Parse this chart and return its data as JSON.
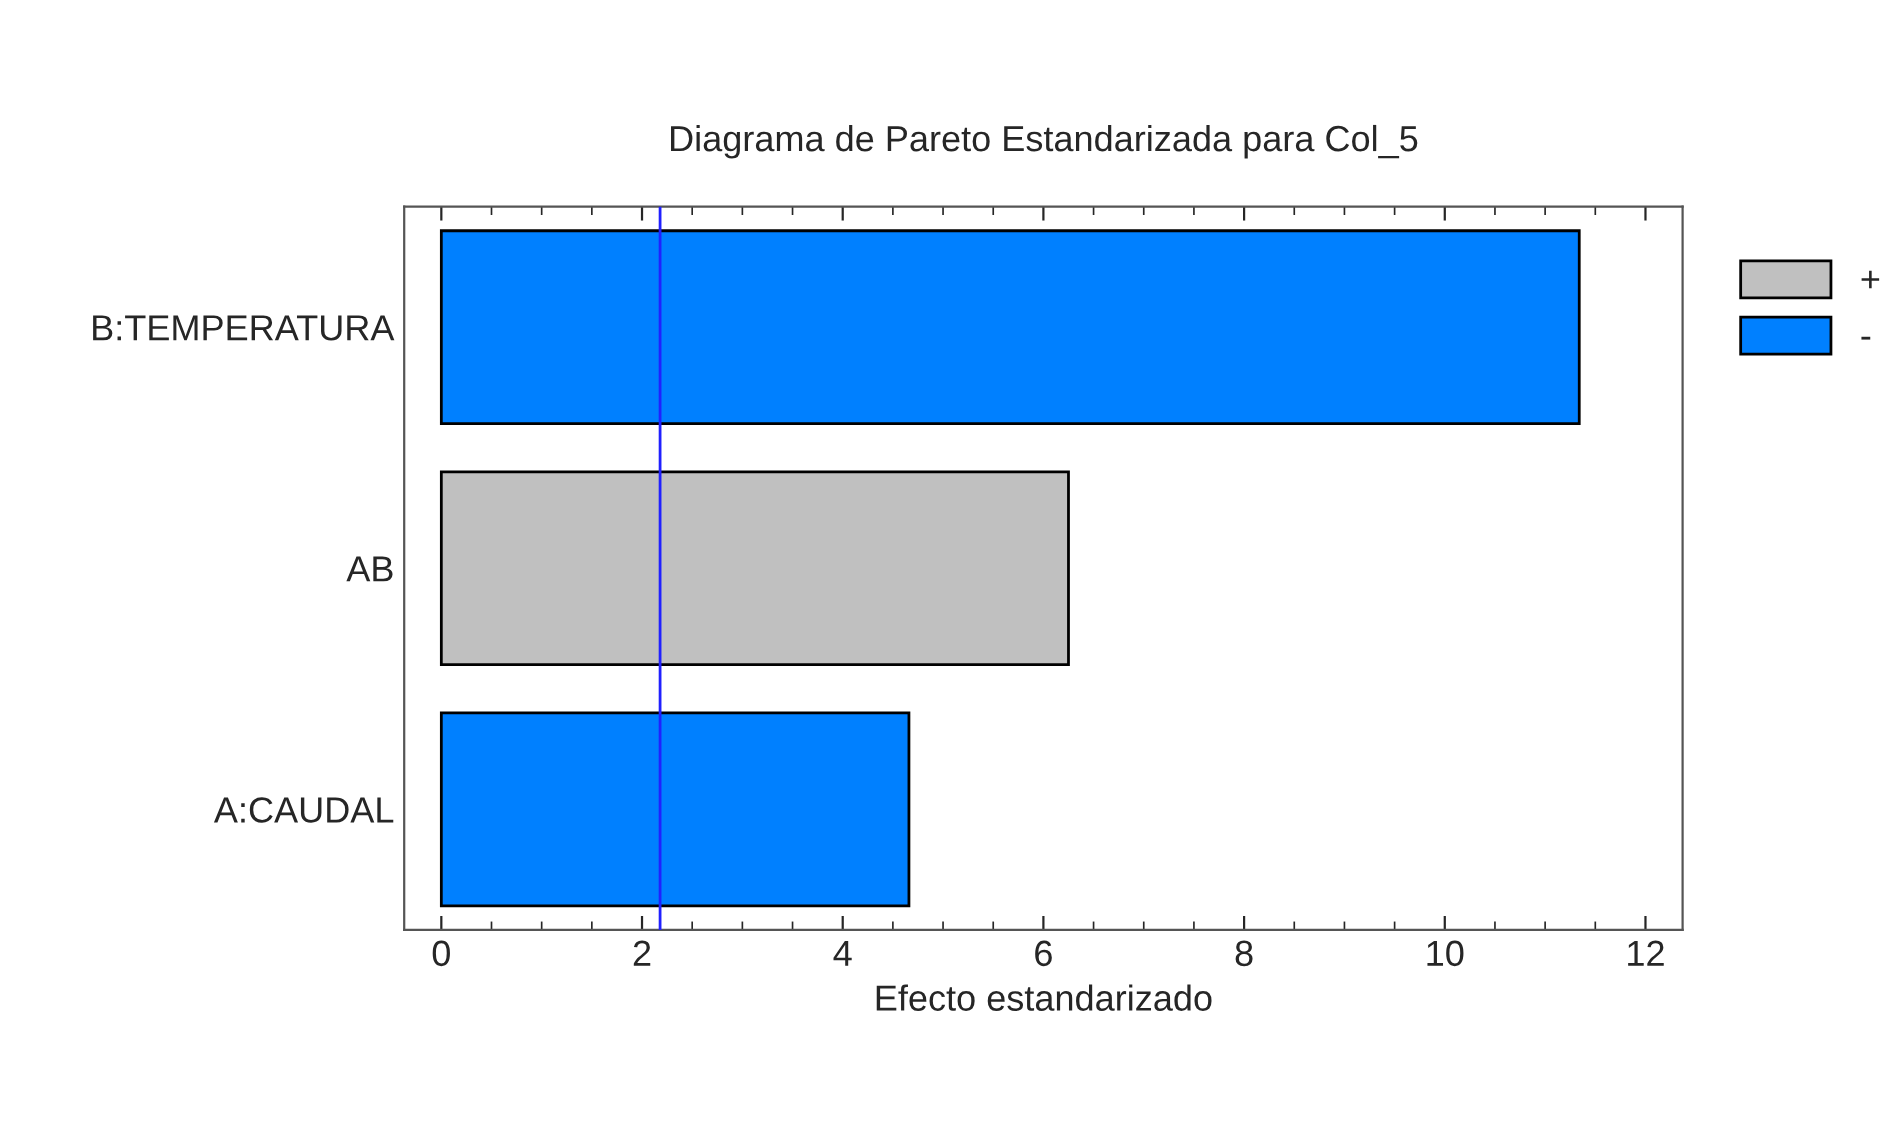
{
  "chart_data": {
    "type": "bar",
    "orientation": "horizontal",
    "title": "Diagrama de Pareto Estandarizada para Col_5",
    "xlabel": "Efecto estandarizado",
    "categories": [
      "B:TEMPERATURA",
      "AB",
      "A:CAUDAL"
    ],
    "series": [
      {
        "name": "+",
        "color": "#c0c0c0",
        "values": [
          null,
          6.25,
          null
        ]
      },
      {
        "name": "-",
        "color": "#0080ff",
        "values": [
          11.34,
          null,
          4.66
        ]
      }
    ],
    "xlim": [
      -0.37,
      12.37
    ],
    "xticks": [
      0,
      2,
      4,
      6,
      8,
      10,
      12
    ],
    "ref_lines": [
      {
        "axis": "x",
        "value": 2.18,
        "color": "#2020ff"
      }
    ],
    "legend": "top right",
    "grid": false
  }
}
